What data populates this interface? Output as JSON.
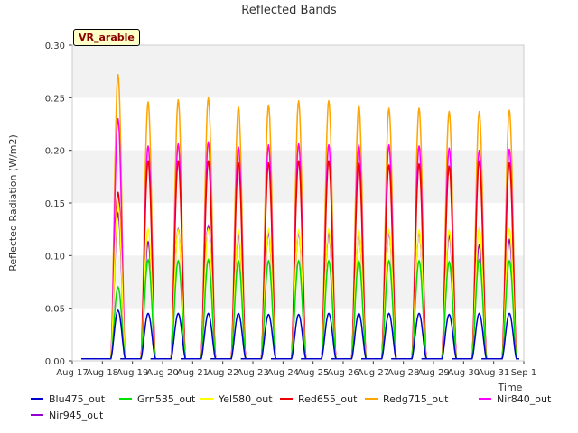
{
  "badge": "VR_arable",
  "chart_data": {
    "type": "line",
    "title": "Reflected Bands",
    "xlabel": "Time",
    "ylabel": "Reflected Radiation (W/m2)",
    "xlim": [
      0,
      15
    ],
    "ylim": [
      0,
      0.3
    ],
    "x_ticks": [
      {
        "v": 0,
        "label": "Aug 17"
      },
      {
        "v": 1,
        "label": "Aug 18"
      },
      {
        "v": 2,
        "label": "Aug 19"
      },
      {
        "v": 3,
        "label": "Aug 20"
      },
      {
        "v": 4,
        "label": "Aug 21"
      },
      {
        "v": 5,
        "label": "Aug 22"
      },
      {
        "v": 6,
        "label": "Aug 23"
      },
      {
        "v": 7,
        "label": "Aug 24"
      },
      {
        "v": 8,
        "label": "Aug 25"
      },
      {
        "v": 9,
        "label": "Aug 26"
      },
      {
        "v": 10,
        "label": "Aug 27"
      },
      {
        "v": 11,
        "label": "Aug 28"
      },
      {
        "v": 12,
        "label": "Aug 29"
      },
      {
        "v": 13,
        "label": "Aug 30"
      },
      {
        "v": 14,
        "label": "Aug 31"
      },
      {
        "v": 15,
        "label": "Sep 1"
      }
    ],
    "y_ticks": [
      {
        "v": 0.0,
        "label": "0.00"
      },
      {
        "v": 0.05,
        "label": "0.05"
      },
      {
        "v": 0.1,
        "label": "0.10"
      },
      {
        "v": 0.15,
        "label": "0.15"
      },
      {
        "v": 0.2,
        "label": "0.20"
      },
      {
        "v": 0.25,
        "label": "0.25"
      },
      {
        "v": 0.3,
        "label": "0.30"
      }
    ],
    "grid": "horizontal bands",
    "legend_position": "bottom",
    "days": [
      "Aug 18",
      "Aug 19",
      "Aug 20",
      "Aug 21",
      "Aug 22",
      "Aug 23",
      "Aug 24",
      "Aug 25",
      "Aug 26",
      "Aug 27",
      "Aug 28",
      "Aug 29",
      "Aug 30",
      "Aug 31"
    ],
    "series": [
      {
        "name": "Blu475_out",
        "color": "#0000cc",
        "daily_peak": [
          0.048,
          0.045,
          0.045,
          0.045,
          0.045,
          0.044,
          0.044,
          0.045,
          0.045,
          0.045,
          0.045,
          0.044,
          0.045,
          0.045
        ]
      },
      {
        "name": "Grn535_out",
        "color": "#00dd00",
        "daily_peak": [
          0.07,
          0.096,
          0.095,
          0.096,
          0.095,
          0.095,
          0.095,
          0.095,
          0.095,
          0.095,
          0.095,
          0.094,
          0.096,
          0.095
        ]
      },
      {
        "name": "Yel580_out",
        "color": "#ffff00",
        "daily_peak": [
          0.15,
          0.125,
          0.124,
          0.125,
          0.124,
          0.125,
          0.124,
          0.125,
          0.124,
          0.124,
          0.124,
          0.124,
          0.126,
          0.125
        ]
      },
      {
        "name": "Red655_out",
        "color": "#ee0000",
        "daily_peak": [
          0.16,
          0.19,
          0.19,
          0.19,
          0.188,
          0.188,
          0.19,
          0.19,
          0.188,
          0.186,
          0.187,
          0.185,
          0.19,
          0.188
        ]
      },
      {
        "name": "Redg715_out",
        "color": "#ffa500",
        "daily_peak": [
          0.272,
          0.246,
          0.248,
          0.25,
          0.241,
          0.243,
          0.247,
          0.247,
          0.243,
          0.24,
          0.24,
          0.237,
          0.237,
          0.238
        ]
      },
      {
        "name": "Nir840_out",
        "color": "#ff00ff",
        "daily_peak": [
          0.23,
          0.204,
          0.206,
          0.208,
          0.203,
          0.205,
          0.206,
          0.205,
          0.205,
          0.205,
          0.204,
          0.202,
          0.2,
          0.201
        ]
      },
      {
        "name": "Nir945_out",
        "color": "#9400d3",
        "daily_peak": [
          0.14,
          0.113,
          0.125,
          0.128,
          0.12,
          0.122,
          0.122,
          0.121,
          0.122,
          0.122,
          0.122,
          0.119,
          0.11,
          0.115
        ]
      }
    ]
  }
}
